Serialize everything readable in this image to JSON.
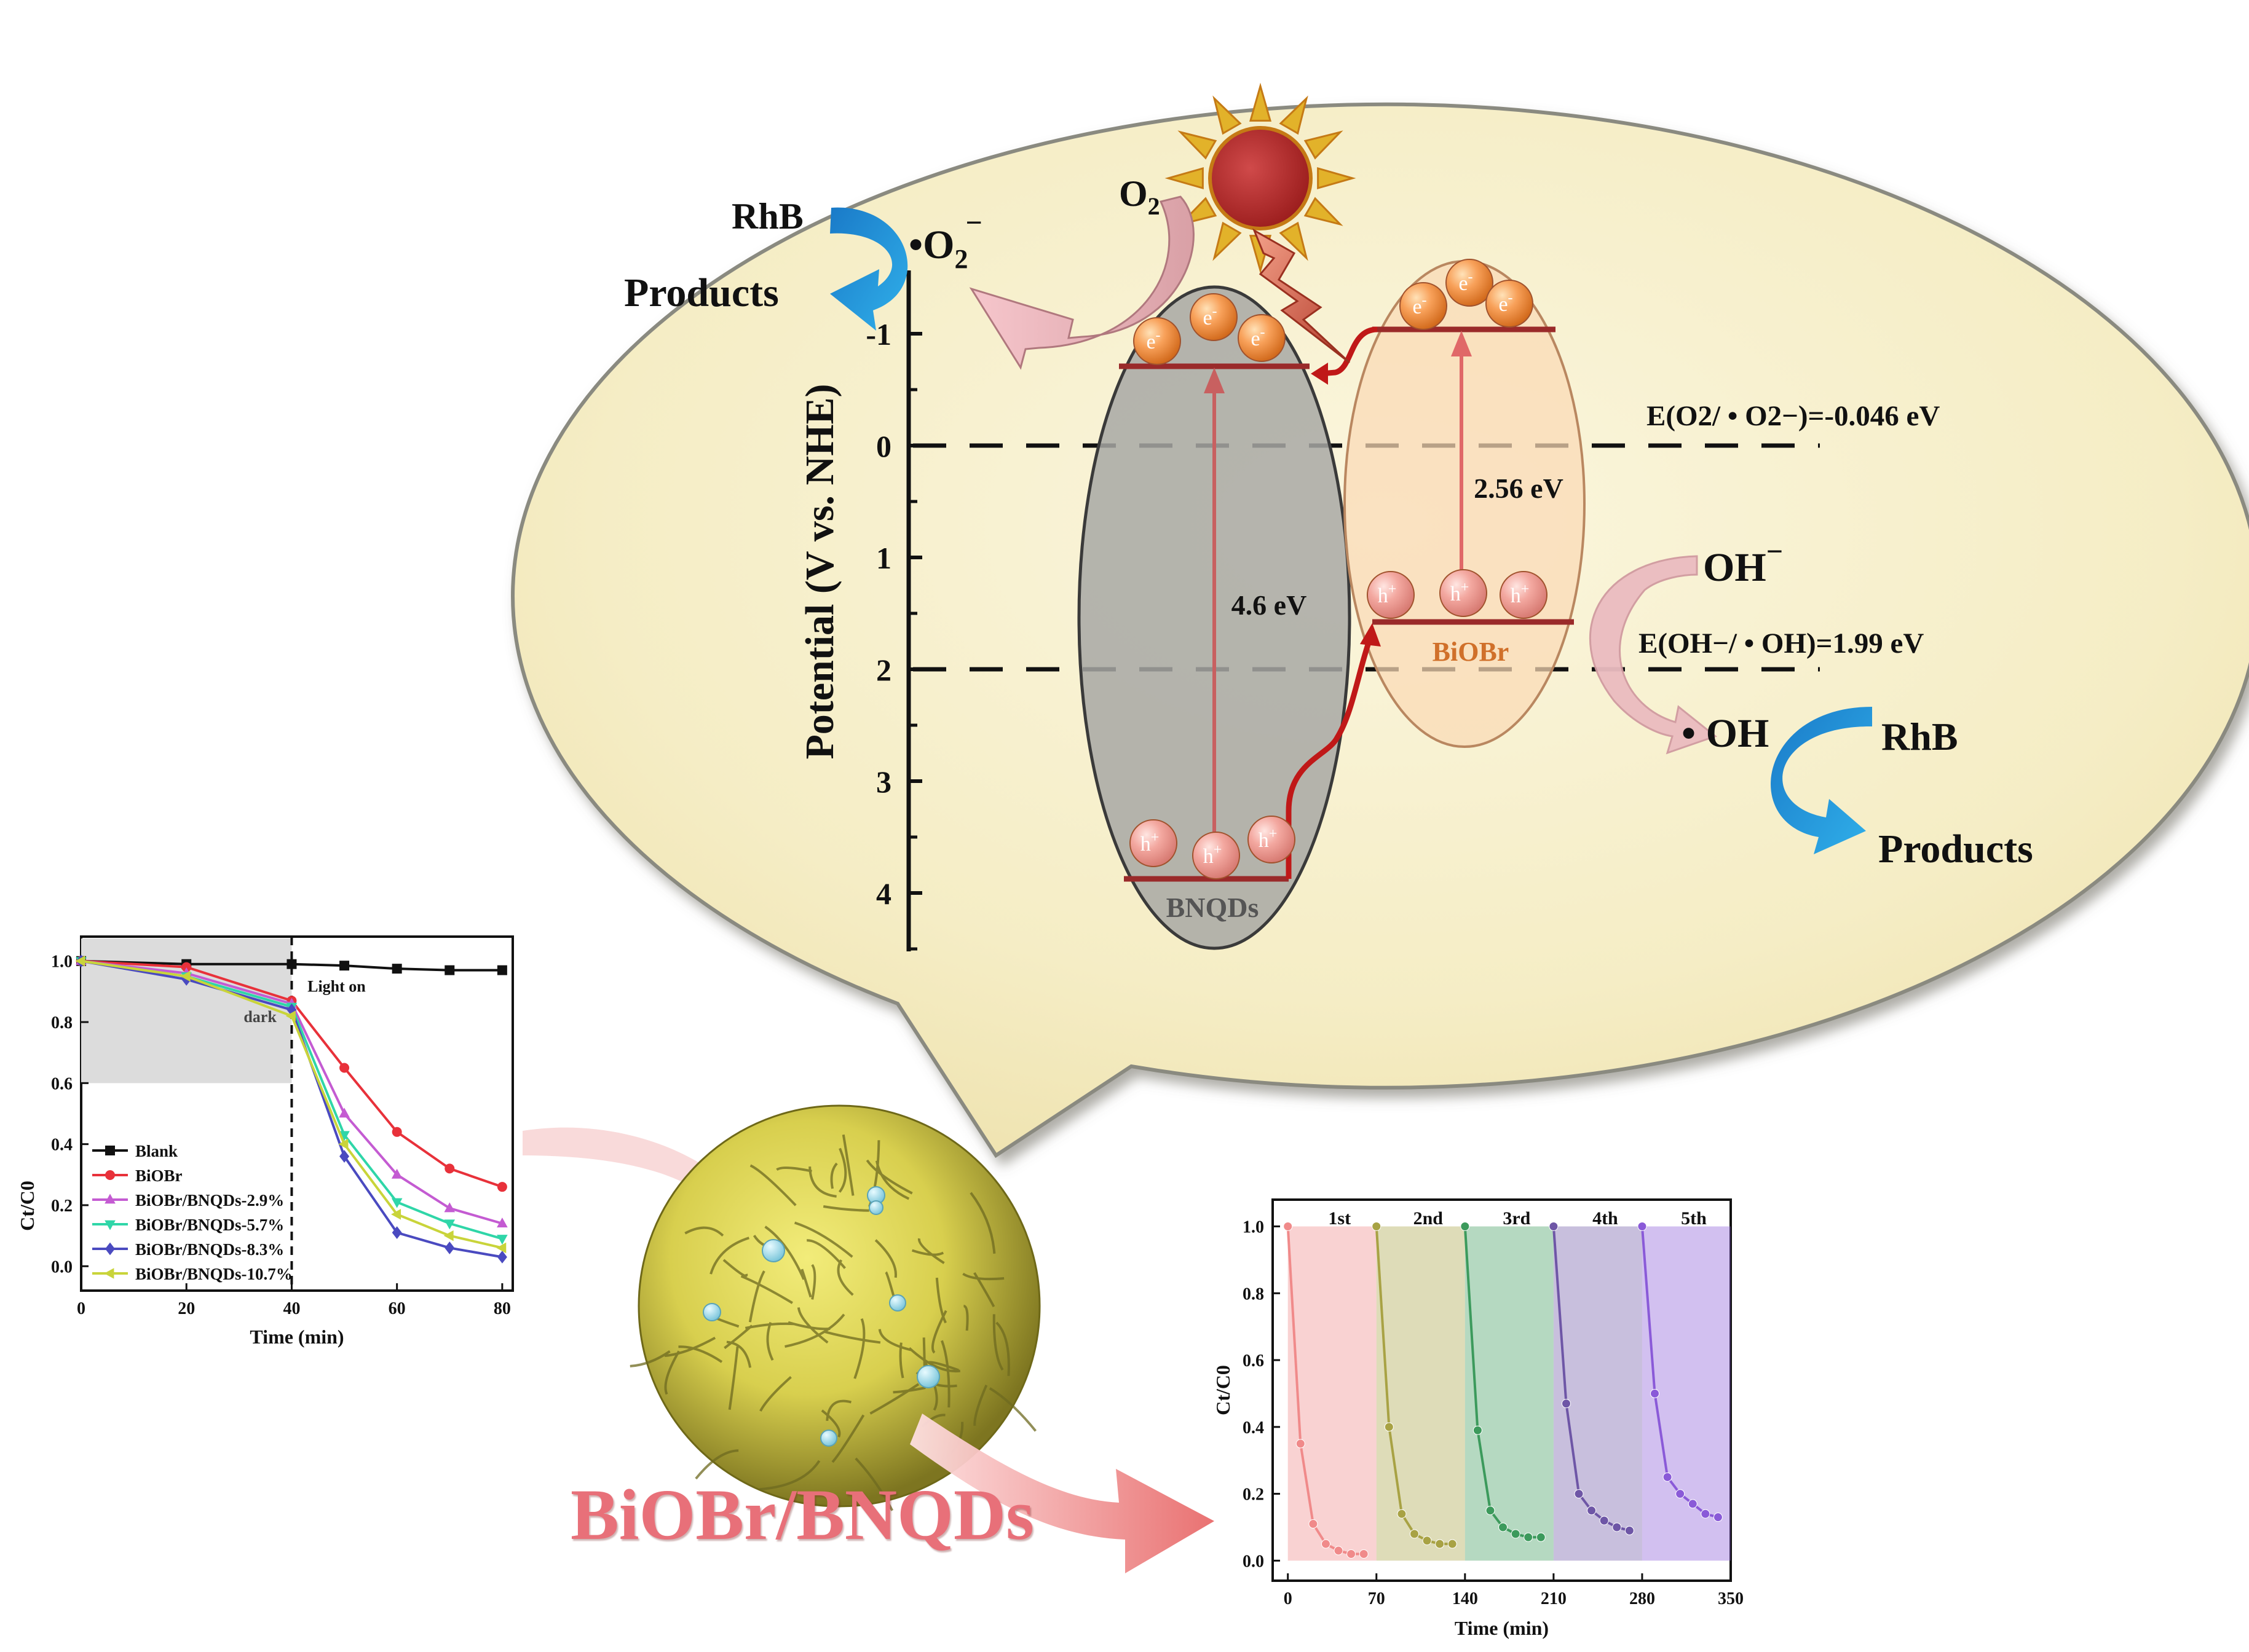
{
  "scheme": {
    "axis_label": "Potential (V vs. NHE)",
    "ticks": [
      "-1",
      "0",
      "1",
      "2",
      "3",
      "4"
    ],
    "o2_label": "O",
    "o2_sub": "2",
    "superoxide_prefix": "•O",
    "superoxide_sub": "2",
    "superoxide_sup": "−",
    "rhb_left": "RhB",
    "products_left": "Products",
    "bnqds_label": "BNQDs",
    "biobr_label": "BiOBr",
    "gap_bnqds": "4.6 eV",
    "gap_biobr": "2.56 eV",
    "electron": "e",
    "electron_sup": "-",
    "hole": "h",
    "hole_sup": "+",
    "level_o2_text": "E(O2/ • O2−)=-0.046 eV",
    "level_oh_text": "E(OH−/ • OH)=1.99 eV",
    "oh_minus": "OH",
    "oh_minus_sup": "−",
    "oh_radical": "• OH",
    "rhb_right": "RhB",
    "products_right": "Products"
  },
  "product_label": "BiOBr/BNQDs",
  "colors": {
    "balloon": "#f6efc8",
    "bnqds": "#a8a8a4",
    "biobr": "#f9d9b6",
    "band_line": "#9a2a2a",
    "biobr_text": "#d0702a",
    "product_text": "#e87079"
  },
  "chart_data": [
    {
      "type": "line",
      "title": "",
      "xlabel": "Time (min)",
      "ylabel": "Ct/C0",
      "xlim": [
        0,
        82
      ],
      "ylim": [
        -0.08,
        1.08
      ],
      "xticks": [
        0,
        20,
        40,
        60,
        80
      ],
      "yticks": [
        0.0,
        0.2,
        0.4,
        0.6,
        0.8,
        1.0
      ],
      "annotations": [
        "dark",
        "Light on"
      ],
      "dark_region": [
        0,
        40
      ],
      "light_on_x": 40,
      "x": [
        0,
        20,
        40,
        50,
        60,
        70,
        80
      ],
      "legend_position": "bottom-left",
      "series": [
        {
          "name": "Blank",
          "color": "#111111",
          "marker": "square",
          "values": [
            1.0,
            0.99,
            0.99,
            0.985,
            0.975,
            0.97,
            0.97
          ]
        },
        {
          "name": "BiOBr",
          "color": "#e8313a",
          "marker": "circle",
          "values": [
            1.0,
            0.98,
            0.87,
            0.65,
            0.44,
            0.32,
            0.26
          ]
        },
        {
          "name": "BiOBr/BNQDs-2.9%",
          "color": "#c45bd2",
          "marker": "triangle-up",
          "values": [
            1.0,
            0.96,
            0.86,
            0.5,
            0.3,
            0.19,
            0.14
          ]
        },
        {
          "name": "BiOBr/BNQDs-5.7%",
          "color": "#2fd6a8",
          "marker": "triangle-down",
          "values": [
            1.0,
            0.95,
            0.85,
            0.43,
            0.21,
            0.14,
            0.09
          ]
        },
        {
          "name": "BiOBr/BNQDs-8.3%",
          "color": "#4a4ac0",
          "marker": "diamond",
          "values": [
            1.0,
            0.94,
            0.84,
            0.36,
            0.11,
            0.06,
            0.03
          ]
        },
        {
          "name": "BiOBr/BNQDs-10.7%",
          "color": "#c9d43a",
          "marker": "left-triangle",
          "values": [
            1.0,
            0.95,
            0.82,
            0.4,
            0.17,
            0.1,
            0.06
          ]
        }
      ]
    },
    {
      "type": "line",
      "title": "",
      "xlabel": "Time (min)",
      "ylabel": "Ct/C0",
      "xlim": [
        -12,
        350
      ],
      "ylim": [
        -0.06,
        1.08
      ],
      "xticks": [
        0,
        70,
        140,
        210,
        280,
        350
      ],
      "yticks": [
        0.0,
        0.2,
        0.4,
        0.6,
        0.8,
        1.0
      ],
      "cycles": [
        {
          "name": "1st",
          "region": [
            0,
            70
          ],
          "color": "#f08a8a",
          "x": [
            0,
            10,
            20,
            30,
            40,
            50,
            60
          ],
          "values": [
            1.0,
            0.35,
            0.11,
            0.05,
            0.03,
            0.02,
            0.02
          ]
        },
        {
          "name": "2nd",
          "region": [
            70,
            140
          ],
          "color": "#a8a244",
          "x": [
            70,
            80,
            90,
            100,
            110,
            120,
            130
          ],
          "values": [
            1.0,
            0.4,
            0.14,
            0.08,
            0.06,
            0.05,
            0.05
          ]
        },
        {
          "name": "3rd",
          "region": [
            140,
            210
          ],
          "color": "#3c9a5c",
          "x": [
            140,
            150,
            160,
            170,
            180,
            190,
            200
          ],
          "values": [
            1.0,
            0.39,
            0.15,
            0.1,
            0.08,
            0.07,
            0.07
          ]
        },
        {
          "name": "4th",
          "region": [
            210,
            280
          ],
          "color": "#6e56a6",
          "x": [
            210,
            220,
            230,
            240,
            250,
            260,
            270
          ],
          "values": [
            1.0,
            0.47,
            0.2,
            0.15,
            0.12,
            0.1,
            0.09
          ]
        },
        {
          "name": "5th",
          "region": [
            280,
            350
          ],
          "color": "#8a5ad8",
          "x": [
            280,
            290,
            300,
            310,
            320,
            330,
            340
          ],
          "values": [
            1.0,
            0.5,
            0.25,
            0.2,
            0.17,
            0.14,
            0.13
          ]
        }
      ]
    }
  ]
}
